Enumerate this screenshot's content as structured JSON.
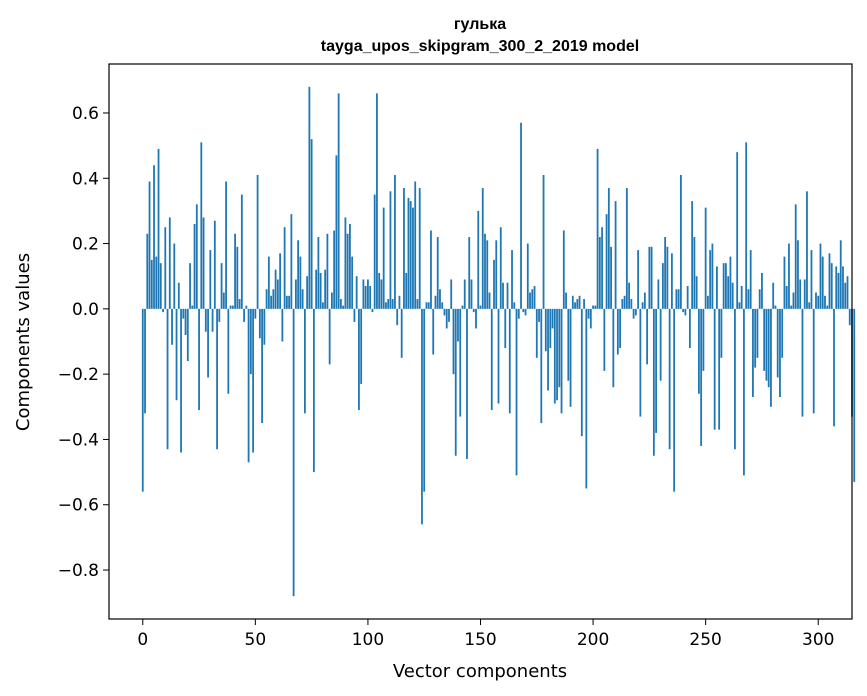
{
  "chart_data": {
    "type": "bar",
    "title": "гулька",
    "subtitle": "tayga_upos_skipgram_300_2_2019 model",
    "xlabel": "Vector components",
    "ylabel": "Components values",
    "xlim": [
      -15,
      315
    ],
    "ylim": [
      -0.95,
      0.75
    ],
    "x_ticks": [
      0,
      50,
      100,
      150,
      200,
      250,
      300
    ],
    "y_ticks": [
      -0.8,
      -0.6,
      -0.4,
      -0.2,
      0.0,
      0.2,
      0.4,
      0.6
    ],
    "y_tick_labels": [
      "−0.8",
      "−0.6",
      "−0.4",
      "−0.2",
      "0.0",
      "0.2",
      "0.4",
      "0.6"
    ],
    "bar_color": "#1f77b4",
    "grid": false,
    "values": [
      -0.56,
      -0.32,
      0.23,
      0.39,
      0.15,
      0.44,
      0.16,
      0.49,
      0.14,
      -0.01,
      0.25,
      -0.43,
      0.28,
      -0.11,
      0.2,
      -0.28,
      0.08,
      -0.44,
      -0.03,
      -0.08,
      -0.16,
      0.14,
      0.01,
      0.26,
      0.32,
      -0.31,
      0.51,
      0.28,
      -0.07,
      -0.21,
      0.18,
      -0.07,
      0.27,
      -0.43,
      -0.04,
      0.14,
      0.05,
      0.39,
      -0.26,
      0.01,
      0.01,
      0.23,
      0.19,
      0.03,
      0.35,
      -0.04,
      0.01,
      -0.47,
      -0.2,
      -0.44,
      -0.03,
      0.41,
      -0.09,
      -0.35,
      -0.11,
      0.06,
      0.16,
      0.04,
      0.06,
      0.12,
      0.09,
      0.17,
      -0.1,
      0.25,
      0.04,
      0.04,
      0.29,
      -0.88,
      0.09,
      0.21,
      0.16,
      0.06,
      -0.32,
      0.1,
      0.68,
      0.52,
      -0.5,
      0.12,
      0.22,
      0.11,
      0.02,
      0.12,
      0.23,
      -0.17,
      0.05,
      0.24,
      0.47,
      0.66,
      0.03,
      0.01,
      0.28,
      0.23,
      0.26,
      0.16,
      -0.04,
      0.1,
      -0.31,
      -0.23,
      0.09,
      0.07,
      0.09,
      0.07,
      -0.01,
      0.35,
      0.66,
      0.11,
      0.09,
      0.31,
      0.02,
      0.03,
      0.36,
      0.03,
      0.41,
      -0.05,
      0.04,
      -0.15,
      0.37,
      0.11,
      0.34,
      0.33,
      0.31,
      0.39,
      0.03,
      0.37,
      -0.66,
      -0.56,
      0.02,
      0.02,
      0.24,
      -0.14,
      0.04,
      0.22,
      0.06,
      0.02,
      -0.02,
      -0.06,
      -0.04,
      0.09,
      -0.2,
      -0.45,
      -0.1,
      -0.33,
      0.01,
      0.09,
      -0.46,
      0.22,
      0.09,
      -0.01,
      -0.06,
      0.3,
      0.01,
      0.37,
      0.23,
      0.21,
      0.05,
      -0.31,
      0.15,
      0.21,
      -0.29,
      0.25,
      0.08,
      -0.12,
      0.08,
      -0.32,
      0.18,
      0.02,
      -0.51,
      -0.03,
      0.57,
      -0.01,
      -0.02,
      0.2,
      0.05,
      0.06,
      0.07,
      -0.15,
      -0.04,
      -0.35,
      0.41,
      -0.13,
      -0.25,
      -0.12,
      -0.06,
      -0.29,
      -0.28,
      -0.24,
      -0.32,
      0.24,
      0.05,
      -0.22,
      -0.3,
      0.04,
      0.02,
      0.03,
      0.04,
      -0.39,
      0.03,
      -0.55,
      -0.03,
      -0.06,
      0.01,
      0.01,
      0.49,
      0.22,
      0.25,
      -0.19,
      0.29,
      0.37,
      0.19,
      -0.24,
      0.33,
      -0.14,
      -0.12,
      0.03,
      0.04,
      0.37,
      0.08,
      0.03,
      -0.03,
      -0.02,
      0.18,
      -0.33,
      0.02,
      0.05,
      -0.17,
      0.19,
      0.19,
      -0.45,
      -0.38,
      0.09,
      -0.22,
      0.14,
      0.22,
      0.19,
      -0.43,
      0.17,
      -0.56,
      0.06,
      0.06,
      0.41,
      -0.01,
      -0.02,
      0.07,
      -0.12,
      0.33,
      0.22,
      0.1,
      -0.26,
      -0.42,
      -0.19,
      0.31,
      0.04,
      0.18,
      0.2,
      -0.37,
      0.13,
      -0.37,
      -0.15,
      0.14,
      0.14,
      0.1,
      0.16,
      0.08,
      -0.43,
      0.48,
      0.02,
      0.07,
      -0.51,
      0.51,
      0.06,
      0.18,
      -0.27,
      -0.18,
      -0.15,
      0.06,
      0.11,
      -0.19,
      -0.22,
      -0.24,
      -0.3,
      0.08,
      0.01,
      -0.21,
      -0.27,
      -0.15,
      0.16,
      0.07,
      0.2,
      0.01,
      0.05,
      0.32,
      0.21,
      0.09,
      -0.33,
      0.09,
      0.36,
      0.02,
      0.18,
      -0.32,
      0.05,
      0.04,
      0.2,
      0.16,
      0.04,
      0.01,
      0.17,
      0.14,
      -0.36,
      0.13,
      0.11,
      0.21,
      0.13,
      0.08,
      0.1,
      -0.05,
      -0.33,
      -0.53
    ]
  }
}
